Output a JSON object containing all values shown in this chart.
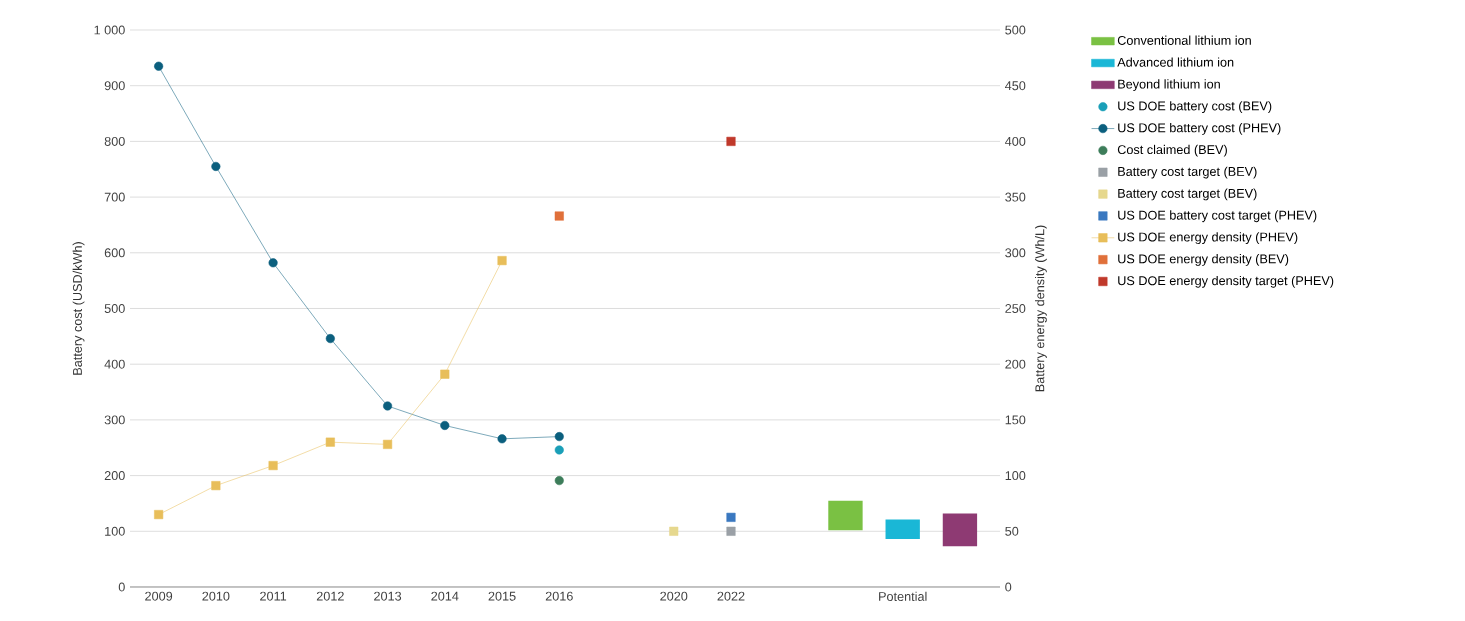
{
  "chart_data": {
    "type": "line",
    "categories": [
      "2009",
      "2010",
      "2011",
      "2012",
      "2013",
      "2014",
      "2015",
      "2016",
      null,
      "2020",
      "2022",
      null,
      null,
      "Potential",
      null
    ],
    "ylabel": "Battery cost (USD/kWh)",
    "y2label": "Battery energy density (Wh/L)",
    "ylim": [
      0,
      1000
    ],
    "yticks": [
      0,
      100,
      200,
      300,
      400,
      500,
      600,
      700,
      800,
      900,
      {
        "value": 1000,
        "label": "1 000"
      }
    ],
    "y2lim": [
      0,
      500
    ],
    "y2ticks": [
      0,
      50,
      100,
      150,
      200,
      250,
      300,
      350,
      400,
      450,
      500
    ],
    "grid": "y",
    "legend": "right",
    "series": [
      {
        "name": "Conventional lithium ion",
        "type": "bar",
        "color": "#7ac143",
        "values": [
          null,
          null,
          null,
          null,
          null,
          null,
          null,
          null,
          null,
          null,
          null,
          null,
          53,
          null,
          null
        ],
        "base": [
          null,
          null,
          null,
          null,
          null,
          null,
          null,
          null,
          null,
          null,
          null,
          null,
          102,
          null,
          null
        ]
      },
      {
        "name": "Advanced lithium ion",
        "type": "bar",
        "color": "#1ab7d6",
        "values": [
          null,
          null,
          null,
          null,
          null,
          null,
          null,
          null,
          null,
          null,
          null,
          null,
          null,
          35,
          null
        ],
        "base": [
          null,
          null,
          null,
          null,
          null,
          null,
          null,
          null,
          null,
          null,
          null,
          null,
          null,
          86,
          null
        ]
      },
      {
        "name": "Beyond lithium ion",
        "type": "bar",
        "color": "#8e3a73",
        "values": [
          null,
          null,
          null,
          null,
          null,
          null,
          null,
          null,
          null,
          null,
          null,
          null,
          null,
          null,
          59
        ],
        "base": [
          null,
          null,
          null,
          null,
          null,
          null,
          null,
          null,
          null,
          null,
          null,
          null,
          null,
          null,
          73
        ]
      },
      {
        "name": "US DOE battery cost (BEV)",
        "type": "scatter",
        "marker": "circle",
        "color": "#1a9fb8",
        "values": [
          null,
          null,
          null,
          null,
          null,
          null,
          null,
          246,
          null,
          null,
          null,
          null,
          null,
          null,
          null
        ]
      },
      {
        "name": "US DOE battery cost (PHEV)",
        "marker": "circle",
        "color": "#0b5f7e",
        "values": [
          935,
          755,
          582,
          446,
          325,
          290,
          266,
          270,
          null,
          null,
          null,
          null,
          null,
          null,
          null
        ]
      },
      {
        "name": "Cost claimed (BEV)",
        "type": "scatter",
        "marker": "circle",
        "color": "#3d7d5a",
        "values": [
          null,
          null,
          null,
          null,
          null,
          null,
          null,
          191,
          null,
          null,
          null,
          null,
          null,
          null,
          null
        ]
      },
      {
        "name": "Battery cost target (BEV)",
        "type": "scatter",
        "marker": "square",
        "color": "#9aa0a6",
        "values": [
          null,
          null,
          null,
          null,
          null,
          null,
          null,
          null,
          null,
          null,
          100,
          null,
          null,
          null,
          null
        ]
      },
      {
        "name": "Battery cost target (BEV)",
        "type": "scatter",
        "marker": "square",
        "color": "#e6d88e",
        "values": [
          null,
          null,
          null,
          null,
          null,
          null,
          null,
          null,
          null,
          100,
          null,
          null,
          null,
          null,
          null
        ]
      },
      {
        "name": "US DOE battery cost target (PHEV)",
        "type": "scatter",
        "marker": "square",
        "color": "#3a78c0",
        "values": [
          null,
          null,
          null,
          null,
          null,
          null,
          null,
          null,
          null,
          null,
          125,
          null,
          null,
          null,
          null
        ]
      },
      {
        "name": "US DOE energy density (PHEV)",
        "marker": "square",
        "axis": "y2",
        "color": "#e8be5a",
        "values": [
          65,
          91,
          109,
          130,
          128,
          191,
          293,
          null,
          null,
          null,
          null,
          null,
          null,
          null,
          null
        ]
      },
      {
        "name": "US DOE energy density (BEV)",
        "type": "scatter",
        "marker": "square",
        "axis": "y2",
        "color": "#e0703a",
        "values": [
          null,
          null,
          null,
          null,
          null,
          null,
          null,
          333,
          null,
          null,
          null,
          null,
          null,
          null,
          null
        ]
      },
      {
        "name": "US DOE energy density target (PHEV)",
        "type": "scatter",
        "marker": "square",
        "axis": "y2",
        "color": "#c0392b",
        "values": [
          null,
          null,
          null,
          null,
          null,
          null,
          null,
          null,
          null,
          null,
          400,
          null,
          null,
          null,
          null
        ]
      }
    ]
  }
}
